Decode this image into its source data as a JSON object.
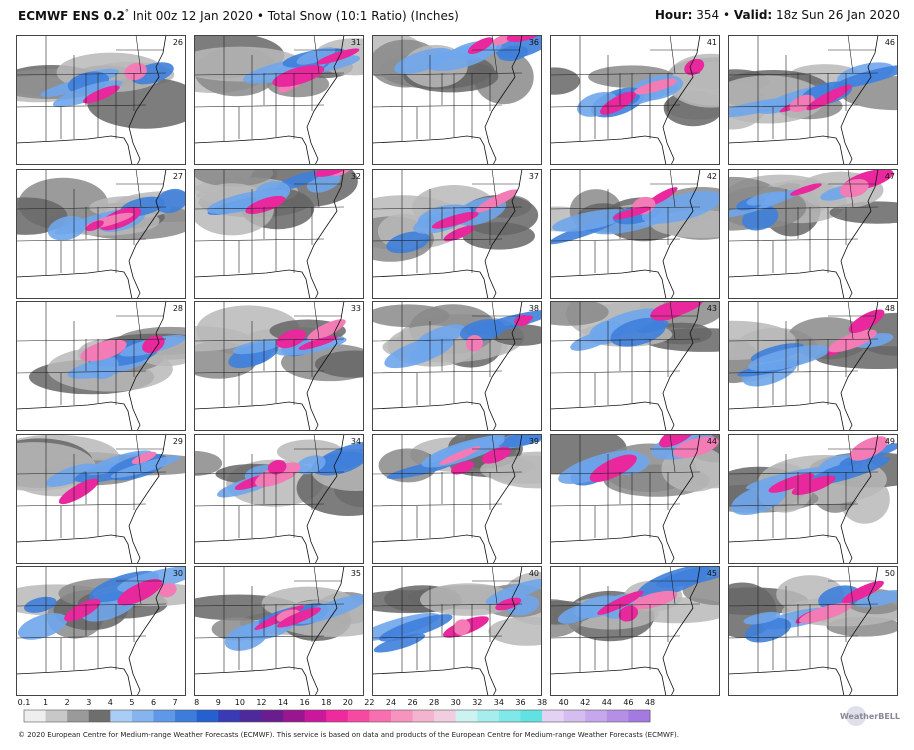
{
  "header": {
    "model": "ECMWF ENS 0.2",
    "degree": "°",
    "description": "Init 00z 12 Jan 2020 • Total Snow (10:1 Ratio) (Inches)",
    "hour_label": "Hour:",
    "hour": "354 •",
    "valid_label": "Valid:",
    "valid": "18z Sun 26 Jan 2020"
  },
  "panels": [
    [
      "26",
      "31",
      "36",
      "41",
      "46"
    ],
    [
      "27",
      "32",
      "37",
      "42",
      "47"
    ],
    [
      "28",
      "33",
      "38",
      "43",
      "48"
    ],
    [
      "29",
      "34",
      "39",
      "44",
      "49"
    ],
    [
      "30",
      "35",
      "40",
      "45",
      "50"
    ]
  ],
  "legend": {
    "labels": [
      "0.1",
      "1",
      "2",
      "3",
      "4",
      "5",
      "6",
      "7",
      "8",
      "9",
      "10",
      "12",
      "14",
      "16",
      "18",
      "20",
      "22",
      "24",
      "26",
      "28",
      "30",
      "32",
      "34",
      "36",
      "38",
      "40",
      "42",
      "44",
      "46",
      "48"
    ],
    "colors": [
      "#eeeeee",
      "#c8c8c8",
      "#9a9a9a",
      "#6e6e6e",
      "#a9cdf4",
      "#86b4ef",
      "#5e98e6",
      "#3c7cdb",
      "#2460cf",
      "#3a3ab4",
      "#4d2a9c",
      "#6a1d8f",
      "#9a1590",
      "#c9189b",
      "#ee2a9e",
      "#f64aa2",
      "#f76fae",
      "#f693be",
      "#f4b3cf",
      "#f1cde0",
      "#cdf2f2",
      "#a6eded",
      "#80e8e8",
      "#62e0e2",
      "#e4d2f4",
      "#d6bdf1",
      "#c6a6ec",
      "#b58fe6",
      "#a479e0"
    ]
  },
  "logo": "WeatherBELL",
  "footer": "© 2020 European Centre for Medium-range Weather Forecasts (ECMWF). This service is based on data and products of the European Centre for Medium-range Weather Forecasts (ECMWF)."
}
